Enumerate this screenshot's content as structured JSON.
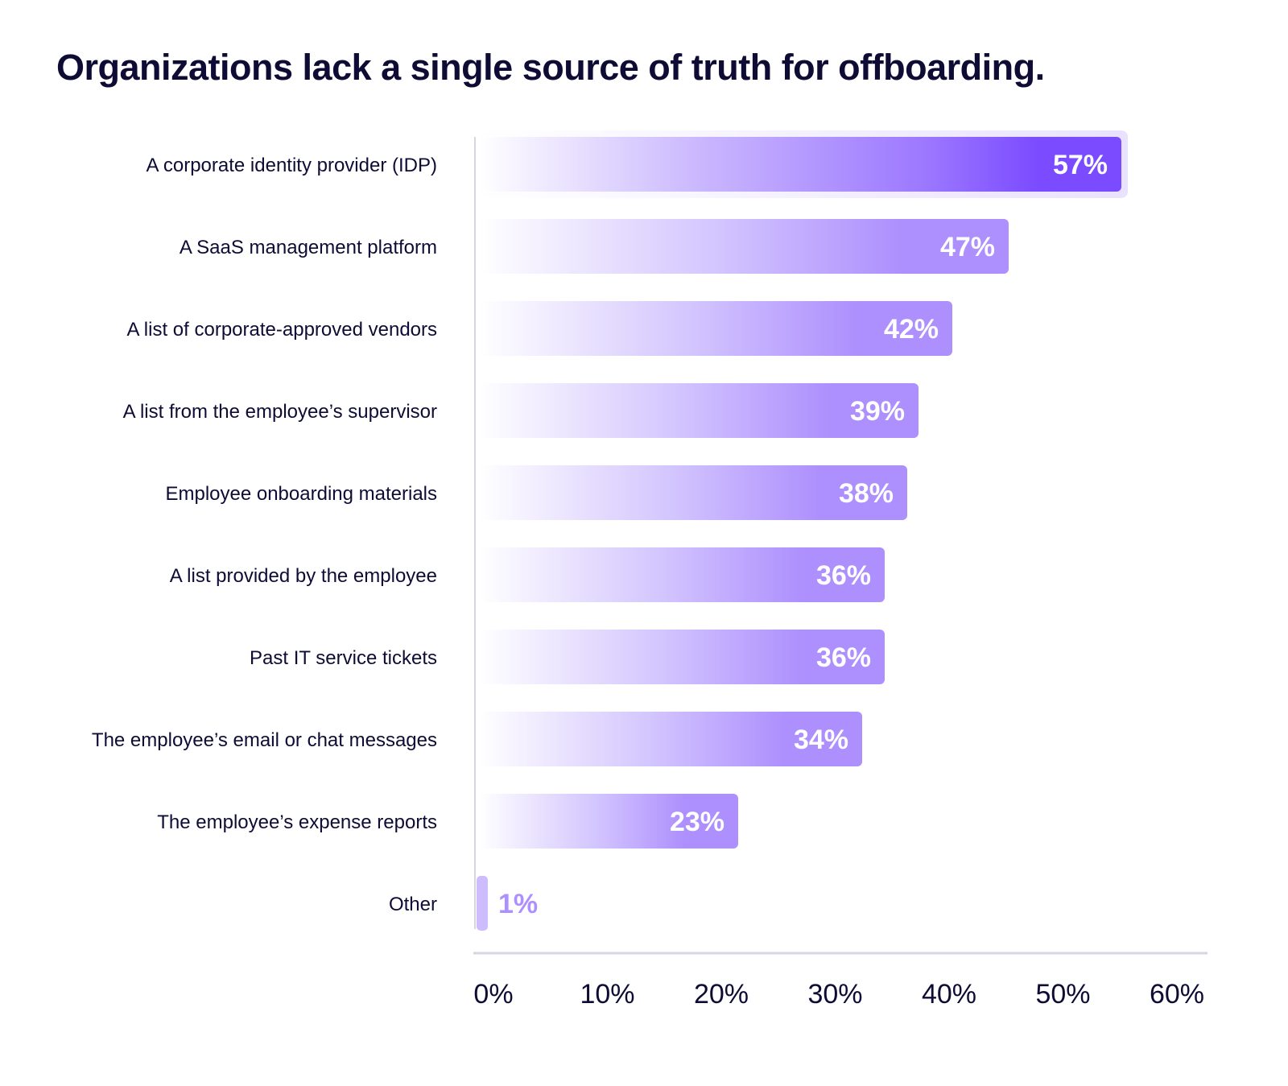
{
  "chart_data": {
    "type": "bar",
    "orientation": "horizontal",
    "title": "Organizations lack a single source of truth for offboarding.",
    "categories": [
      "A corporate identity provider (IDP)",
      "A SaaS management platform",
      "A list of corporate-approved vendors",
      "A list from the employee’s supervisor",
      "Employee onboarding materials",
      "A list provided by the employee",
      "Past IT service tickets",
      "The employee’s email or chat messages",
      "The employee’s expense reports",
      "Other"
    ],
    "values": [
      57,
      47,
      42,
      39,
      38,
      36,
      36,
      34,
      23,
      1
    ],
    "data_labels": [
      "57%",
      "47%",
      "42%",
      "39%",
      "38%",
      "36%",
      "36%",
      "34%",
      "23%",
      "1%"
    ],
    "xlim": [
      0,
      60
    ],
    "x_ticks": [
      "0%",
      "10%",
      "20%",
      "30%",
      "40%",
      "50%",
      "60%"
    ],
    "grid": false,
    "colors": {
      "highlight": "#7b4bff",
      "bar": "#ad8ffd",
      "bar_start": "#ffffff",
      "text": "#0e0c35",
      "axis": "#d8d6e2"
    }
  }
}
